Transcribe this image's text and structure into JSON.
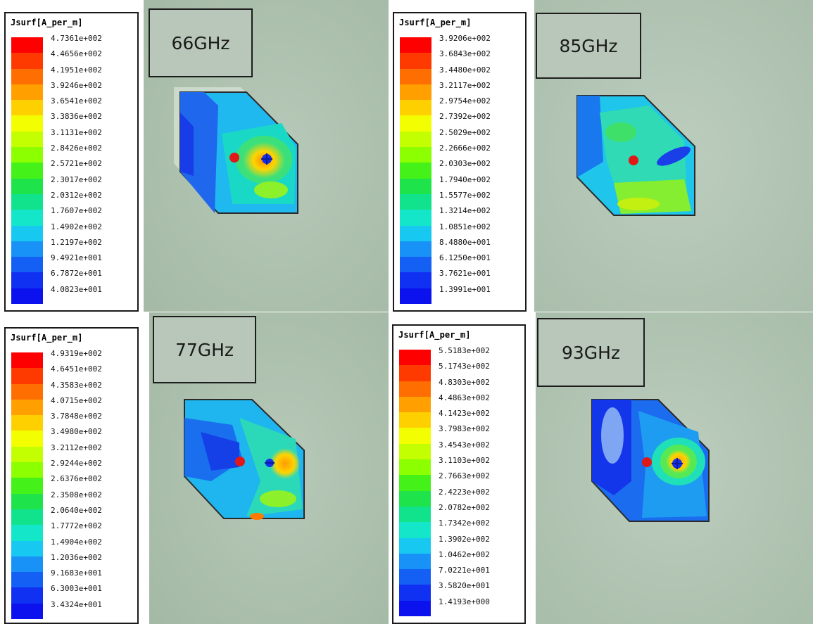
{
  "colorscale": [
    "#ff0000",
    "#ff3a00",
    "#ff6e00",
    "#ff9f00",
    "#ffd000",
    "#f3ff00",
    "#c3ff00",
    "#8cff00",
    "#44f21a",
    "#1fe34a",
    "#11e38c",
    "#13e6c9",
    "#17c9f0",
    "#1892f6",
    "#1460f5",
    "#1030f2",
    "#0c12ee"
  ],
  "panels": [
    {
      "frequency": "66GHz",
      "legend": {
        "title": "Jsurf[A_per_m]",
        "values": [
          "4.7361e+002",
          "4.4656e+002",
          "4.1951e+002",
          "3.9246e+002",
          "3.6541e+002",
          "3.3836e+002",
          "3.1131e+002",
          "2.8426e+002",
          "2.5721e+002",
          "2.3017e+002",
          "2.0312e+002",
          "1.7607e+002",
          "1.4902e+002",
          "1.2197e+002",
          "9.4921e+001",
          "6.7872e+001",
          "4.0823e+001"
        ]
      }
    },
    {
      "frequency": "85GHz",
      "legend": {
        "title": "Jsurf[A_per_m]",
        "values": [
          "3.9206e+002",
          "3.6843e+002",
          "3.4480e+002",
          "3.2117e+002",
          "2.9754e+002",
          "2.7392e+002",
          "2.5029e+002",
          "2.2666e+002",
          "2.0303e+002",
          "1.7940e+002",
          "1.5577e+002",
          "1.3214e+002",
          "1.0851e+002",
          "8.4880e+001",
          "6.1250e+001",
          "3.7621e+001",
          "1.3991e+001"
        ]
      }
    },
    {
      "frequency": "77GHz",
      "legend": {
        "title": "Jsurf[A_per_m]",
        "values": [
          "4.9319e+002",
          "4.6451e+002",
          "4.3583e+002",
          "4.0715e+002",
          "3.7848e+002",
          "3.4980e+002",
          "3.2112e+002",
          "2.9244e+002",
          "2.6376e+002",
          "2.3508e+002",
          "2.0640e+002",
          "1.7772e+002",
          "1.4904e+002",
          "1.2036e+002",
          "9.1683e+001",
          "6.3003e+001",
          "3.4324e+001"
        ]
      }
    },
    {
      "frequency": "93GHz",
      "legend": {
        "title": "Jsurf[A_per_m]",
        "values": [
          "5.5183e+002",
          "5.1743e+002",
          "4.8303e+002",
          "4.4863e+002",
          "4.1423e+002",
          "3.7983e+002",
          "3.4543e+002",
          "3.1103e+002",
          "2.7663e+002",
          "2.4223e+002",
          "2.0782e+002",
          "1.7342e+002",
          "1.3902e+002",
          "1.0462e+002",
          "7.0221e+001",
          "3.5820e+001",
          "1.4193e+000"
        ]
      }
    }
  ]
}
